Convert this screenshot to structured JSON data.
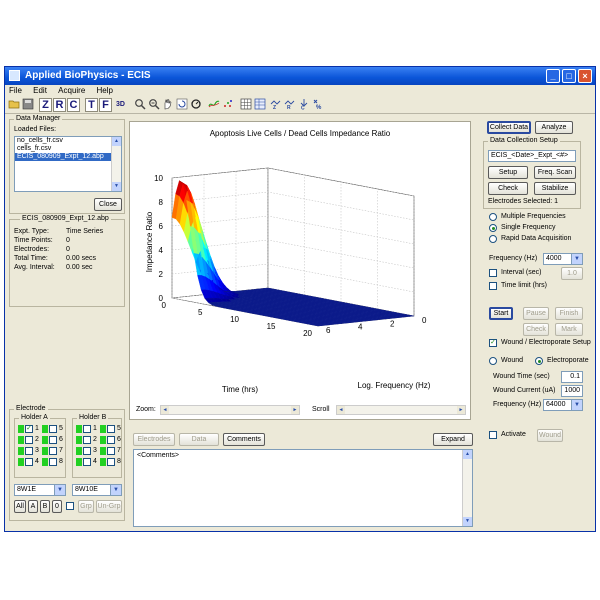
{
  "window": {
    "title": "Applied BioPhysics - ECIS"
  },
  "menu": [
    "File",
    "Edit",
    "Acquire",
    "Help"
  ],
  "toolbar_letters": [
    "Z",
    "R",
    "C",
    "T",
    "F",
    "3D"
  ],
  "data_manager": {
    "group_label": "Data Manager",
    "loaded_label": "Loaded Files:",
    "files": [
      "no_cells_fr.csv",
      "cells_fr.csv",
      "ECIS_080909_Expt_12.abp"
    ],
    "selected_index": 2,
    "close_label": "Close"
  },
  "expt": {
    "title": "ECIS_080909_Expt_12.abp",
    "rows": [
      {
        "label": "Expt. Type:",
        "value": "Time Series"
      },
      {
        "label": "Time Points:",
        "value": "0"
      },
      {
        "label": "Electrodes:",
        "value": "0"
      },
      {
        "label": "Total Time:",
        "value": "0.00 secs"
      },
      {
        "label": "Avg. Interval:",
        "value": "0.00 sec"
      }
    ]
  },
  "electrode": {
    "group_label": "Electrode",
    "holder_a": "Holder A",
    "holder_b": "Holder B",
    "numbers": [
      "1",
      "2",
      "3",
      "4",
      "5",
      "6",
      "7",
      "8"
    ],
    "combo_a": "8W1E",
    "combo_b": "8W10E",
    "buttons": {
      "all": "All",
      "a": "A",
      "b": "B",
      "zero": "0",
      "grp": "Grp",
      "ungrp": "Un-Grp"
    }
  },
  "chart_data": {
    "type": "surface3d",
    "title": "Apoptosis Live Cells / Dead Cells Impedance Ratio",
    "xlabel": "Time (hrs)",
    "ylabel": "Log. Frequency (Hz)",
    "zlabel": "Impedance Ratio",
    "x_ticks": [
      0,
      5,
      10,
      15,
      20
    ],
    "y_ticks": [
      0,
      2,
      4,
      6
    ],
    "z_ticks": [
      0,
      2,
      4,
      6,
      8,
      10
    ],
    "xlim": [
      0,
      20
    ],
    "ylim": [
      0,
      6
    ],
    "zlim": [
      0,
      10
    ],
    "peak": {
      "time": 0,
      "log_frequency": 6,
      "ratio": 10
    },
    "baseline_ratio": 1,
    "colormap": "jet",
    "grid": true
  },
  "chart_controls": {
    "zoom_label": "Zoom:",
    "scroll_label": "Scroll"
  },
  "bottom": {
    "tabs": [
      "Electrodes",
      "Data",
      "Comments"
    ],
    "expand_label": "Expand",
    "comments_text": "<Comments>"
  },
  "right": {
    "collect_label": "Collect Data",
    "analyze_label": "Analyze",
    "setup_group": "Data Collection Setup",
    "file_pattern": "ECIS_<Date>_Expt_<#>",
    "setup_btn": "Setup",
    "freq_scan_btn": "Freq. Scan",
    "check_btn": "Check",
    "stabilize_btn": "Stabilize",
    "electrodes_selected": "Electrodes Selected: 1",
    "modes": [
      "Multiple Frequencies",
      "Single Frequency",
      "Rapid Data Acquisition"
    ],
    "selected_mode": 1,
    "frequency_label": "Frequency (Hz)",
    "frequency_value": "4000",
    "interval_label": "Interval (sec)",
    "interval_value": "1.0",
    "timelimit_label": "Time limit (hrs)",
    "start": "Start",
    "pause": "Pause",
    "finish": "Finish",
    "check2": "Check",
    "mark": "Mark",
    "wound_setup_label": "Wound / Electroporate Setup",
    "wound_radio": "Wound",
    "electroporate_radio": "Electroporate",
    "wound_time_label": "Wound Time (sec)",
    "wound_time_value": "0.1",
    "wound_current_label": "Wound Current (uA)",
    "wound_current_value": "1000",
    "wound_freq_label": "Frequency (Hz)",
    "wound_freq_value": "64000",
    "activate_label": "Activate",
    "wound_btn": "Wound"
  },
  "colors": {
    "titlebar": "#0a55d8",
    "chrome": "#ece9d8",
    "selection": "#316ac5",
    "surface_base": "#0b1a8a",
    "led": "#22d022"
  }
}
